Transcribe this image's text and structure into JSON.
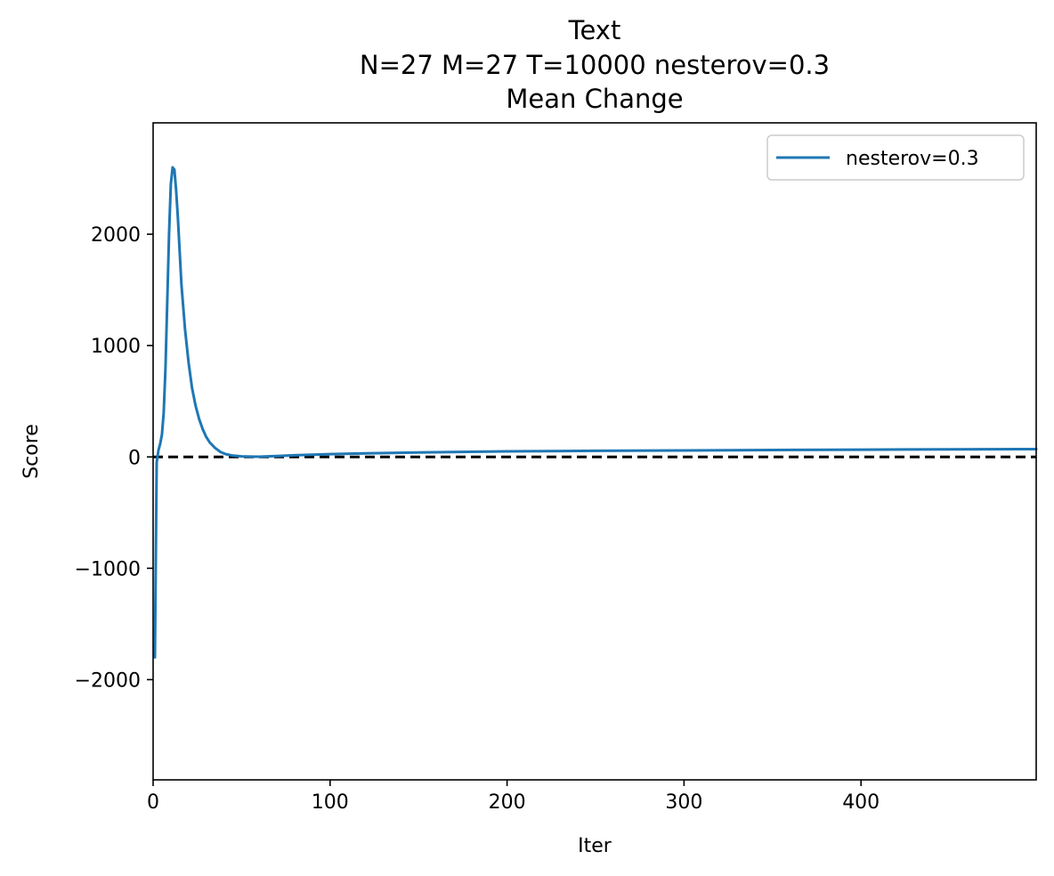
{
  "chart_data": {
    "type": "line",
    "title_lines": [
      "Text",
      "N=27 M=27 T=10000 nesterov=0.3",
      "Mean Change"
    ],
    "xlabel": "Iter",
    "ylabel": "Score",
    "xlim": [
      0,
      499
    ],
    "ylim": [
      -2900,
      3000
    ],
    "xticks": [
      0,
      100,
      200,
      300,
      400
    ],
    "yticks": [
      -2000,
      -1000,
      0,
      1000,
      2000
    ],
    "ytick_labels": [
      "−2000",
      "−1000",
      "0",
      "1000",
      "2000"
    ],
    "xtick_labels": [
      "0",
      "100",
      "200",
      "300",
      "400"
    ],
    "legend": {
      "placement": "top-right"
    },
    "reference_line": {
      "y": 0,
      "style": "dashed",
      "color": "#000000"
    },
    "series": [
      {
        "name": "nesterov=0.3",
        "color": "#1f77b4",
        "x": [
          1,
          2,
          3,
          4,
          5,
          6,
          7,
          8,
          9,
          10,
          11,
          12,
          13,
          14,
          15,
          16,
          18,
          20,
          22,
          24,
          26,
          28,
          30,
          32,
          35,
          38,
          41,
          45,
          50,
          55,
          60,
          70,
          80,
          100,
          120,
          150,
          200,
          250,
          300,
          350,
          400,
          450,
          499
        ],
        "y": [
          -1800,
          -50,
          60,
          120,
          200,
          400,
          800,
          1400,
          2000,
          2450,
          2600,
          2580,
          2400,
          2150,
          1850,
          1550,
          1150,
          850,
          620,
          460,
          340,
          250,
          180,
          130,
          80,
          45,
          25,
          12,
          5,
          3,
          2,
          8,
          15,
          25,
          32,
          40,
          50,
          55,
          58,
          62,
          65,
          68,
          70
        ]
      }
    ]
  }
}
